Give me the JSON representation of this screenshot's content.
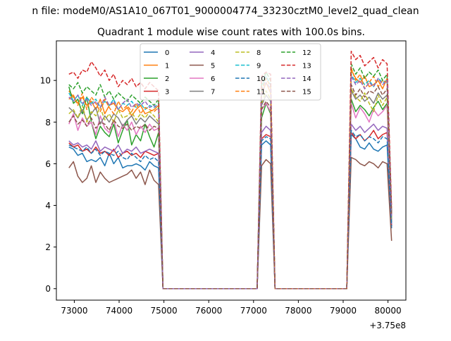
{
  "figure": {
    "suptitle": "n file: modeM0/AS1A10_067T01_9000004774_33230cztM0_level2_quad_clean"
  },
  "chart_data": {
    "type": "line",
    "title": "Quadrant 1 module wise count rates with 100.0s bins.",
    "xlabel": "",
    "ylabel": "",
    "x_offset_label": "+3.75e8",
    "xlim": [
      72600,
      80400
    ],
    "ylim": [
      -0.55,
      11.9
    ],
    "x_ticks": [
      73000,
      74000,
      75000,
      76000,
      77000,
      78000,
      79000,
      80000
    ],
    "x_tick_labels": [
      "73000",
      "74000",
      "75000",
      "76000",
      "77000",
      "78000",
      "79000",
      "80000"
    ],
    "y_ticks": [
      0,
      2,
      4,
      6,
      8,
      10
    ],
    "y_tick_labels": [
      "0",
      "2",
      "4",
      "6",
      "8",
      "10"
    ],
    "grid": false,
    "legend": {
      "placement": "upper-center",
      "columns": 4
    },
    "segment_x": {
      "seg1": [
        72880,
        72980,
        73080,
        73180,
        73280,
        73380,
        73480,
        73580,
        73680,
        73780,
        73880,
        73980,
        74080,
        74180,
        74280,
        74380,
        74480,
        74580,
        74680,
        74780,
        74880
      ],
      "gap1": [
        74980,
        75080,
        75180,
        75280,
        75380,
        75480,
        75580,
        75680,
        75780,
        75880,
        75980,
        76080,
        76180,
        76280,
        76380,
        76480,
        76580,
        76680,
        76780,
        76880,
        76980,
        77080
      ],
      "seg2": [
        77180,
        77280,
        77380
      ],
      "gap2": [
        77480,
        77580,
        77680,
        77780,
        77880,
        77980,
        78080,
        78180,
        78280,
        78380,
        78480,
        78580,
        78680,
        78780,
        78880,
        78980,
        79080
      ],
      "seg3": [
        79180,
        79280,
        79380,
        79480,
        79580,
        79680,
        79780,
        79880,
        79980
      ],
      "end": [
        80080
      ]
    },
    "series": [
      {
        "name": "0",
        "color": "#1f77b4",
        "dash": "solid",
        "seg1": [
          6.8,
          6.7,
          6.4,
          6.5,
          6.1,
          6.2,
          6.1,
          6.3,
          5.9,
          6.5,
          6.0,
          6.3,
          5.8,
          5.9,
          5.9,
          6.0,
          5.9,
          5.7,
          6.1,
          5.9,
          5.8
        ],
        "seg2": [
          6.9,
          7.1,
          6.9
        ],
        "seg3": [
          7.4,
          7.2,
          6.8,
          6.7,
          7.0,
          6.7,
          6.6,
          6.8,
          6.9
        ],
        "end": 2.9
      },
      {
        "name": "1",
        "color": "#ff7f0e",
        "dash": "solid",
        "seg1": [
          9.5,
          9.2,
          8.9,
          9.2,
          8.8,
          9.0,
          8.6,
          9.1,
          8.4,
          8.8,
          8.9,
          8.6,
          8.5,
          8.7,
          8.3,
          8.6,
          8.8,
          8.4,
          8.5,
          8.6,
          8.8
        ],
        "seg2": [
          9.3,
          9.9,
          9.4
        ],
        "seg3": [
          10.5,
          10.1,
          9.9,
          10.2,
          9.7,
          9.8,
          10.0,
          9.6,
          10.1
        ],
        "end": 3.4
      },
      {
        "name": "2",
        "color": "#2ca02c",
        "dash": "solid",
        "seg1": [
          9.7,
          8.9,
          9.1,
          8.4,
          9.2,
          8.0,
          7.2,
          7.8,
          7.5,
          7.3,
          7.9,
          7.0,
          7.6,
          8.1,
          6.9,
          7.4,
          7.1,
          7.9,
          7.3,
          6.8,
          7.5
        ],
        "seg2": [
          8.2,
          8.9,
          8.4
        ],
        "seg3": [
          9.1,
          8.5,
          8.8,
          8.6,
          8.3,
          8.7,
          9.0,
          8.6,
          8.9
        ],
        "end": 3.2
      },
      {
        "name": "3",
        "color": "#d62728",
        "dash": "solid",
        "seg1": [
          7.0,
          6.8,
          6.9,
          6.6,
          6.7,
          6.5,
          6.8,
          6.5,
          6.6,
          6.4,
          6.7,
          6.3,
          6.5,
          6.6,
          6.4,
          6.5,
          6.3,
          6.6,
          6.5,
          6.4,
          6.5
        ],
        "seg2": [
          7.2,
          7.4,
          7.3
        ],
        "seg3": [
          7.5,
          7.2,
          7.4,
          7.1,
          7.3,
          7.6,
          7.2,
          7.4,
          7.5
        ],
        "end": 3.0
      },
      {
        "name": "4",
        "color": "#9467bd",
        "dash": "solid",
        "seg1": [
          7.1,
          6.9,
          7.0,
          6.8,
          6.9,
          6.7,
          7.1,
          6.6,
          6.8,
          6.7,
          6.6,
          6.9,
          6.5,
          6.7,
          6.6,
          6.8,
          6.5,
          6.6,
          6.7,
          6.6,
          6.5
        ],
        "seg2": [
          7.5,
          7.8,
          7.6
        ],
        "seg3": [
          7.9,
          7.6,
          7.8,
          7.5,
          7.7,
          7.9,
          7.6,
          7.8,
          7.7
        ],
        "end": 3.1
      },
      {
        "name": "5",
        "color": "#8c564b",
        "dash": "solid",
        "seg1": [
          5.8,
          6.1,
          5.4,
          5.1,
          5.3,
          5.9,
          5.1,
          5.6,
          5.3,
          5.1,
          5.2,
          5.3,
          5.4,
          5.5,
          5.7,
          5.3,
          5.6,
          5.0,
          5.7,
          5.2,
          5.0
        ],
        "seg2": [
          5.9,
          6.2,
          6.0
        ],
        "seg3": [
          6.3,
          6.2,
          6.0,
          5.9,
          6.1,
          6.0,
          5.8,
          6.1,
          6.0
        ],
        "end": 2.3
      },
      {
        "name": "6",
        "color": "#e377c2",
        "dash": "solid",
        "seg1": [
          7.9,
          8.4,
          7.6,
          8.2,
          7.8,
          8.0,
          7.4,
          8.3,
          7.7,
          7.5,
          8.1,
          7.3,
          7.9,
          7.6,
          8.0,
          7.4,
          7.8,
          7.5,
          7.9,
          7.6,
          7.7
        ],
        "seg2": [
          8.6,
          8.9,
          8.5
        ],
        "seg3": [
          8.9,
          8.2,
          8.7,
          8.4,
          8.0,
          8.6,
          8.3,
          8.5,
          8.8
        ],
        "end": 3.3
      },
      {
        "name": "7",
        "color": "#7f7f7f",
        "dash": "solid",
        "seg1": [
          8.7,
          8.5,
          8.2,
          8.6,
          8.1,
          8.4,
          8.7,
          7.9,
          8.3,
          8.0,
          8.4,
          8.2,
          7.8,
          8.1,
          8.3,
          7.9,
          8.2,
          8.0,
          8.3,
          8.1,
          7.9
        ],
        "seg2": [
          8.8,
          9.3,
          9.0
        ],
        "seg3": [
          9.5,
          9.1,
          9.3,
          9.0,
          9.2,
          8.9,
          9.4,
          9.1,
          9.3
        ],
        "end": 3.3
      },
      {
        "name": "8",
        "color": "#bcbd22",
        "dash": "dashed",
        "seg1": [
          8.4,
          8.6,
          8.2,
          8.8,
          8.0,
          8.5,
          8.3,
          8.7,
          8.1,
          8.4,
          8.0,
          8.6,
          8.2,
          8.3,
          8.5,
          8.1,
          8.4,
          8.2,
          8.5,
          8.3,
          8.0
        ],
        "seg2": [
          8.9,
          9.5,
          9.1
        ],
        "seg3": [
          9.6,
          9.2,
          9.0,
          9.4,
          8.9,
          8.5,
          9.3,
          8.8,
          9.2
        ],
        "end": 3.4
      },
      {
        "name": "9",
        "color": "#17becf",
        "dash": "dashed",
        "seg1": [
          9.4,
          9.0,
          9.3,
          8.8,
          9.2,
          8.9,
          9.1,
          8.7,
          9.0,
          8.8,
          9.1,
          8.6,
          8.9,
          8.8,
          9.0,
          8.7,
          8.9,
          8.6,
          8.8,
          8.7,
          8.9
        ],
        "seg2": [
          9.6,
          10.2,
          9.8
        ],
        "seg3": [
          10.3,
          9.9,
          10.1,
          9.8,
          10.0,
          9.7,
          10.1,
          9.9,
          10.0
        ],
        "end": 3.5
      },
      {
        "name": "10",
        "color": "#1f77b4",
        "dash": "dashed",
        "seg1": [
          6.9,
          6.8,
          6.7,
          6.6,
          6.8,
          6.5,
          6.7,
          6.4,
          6.6,
          6.5,
          6.4,
          6.6,
          6.3,
          6.2,
          6.5,
          6.3,
          6.1,
          6.4,
          6.2,
          6.3,
          6.1
        ],
        "seg2": [
          7.1,
          7.3,
          7.2
        ],
        "seg3": [
          7.6,
          7.3,
          7.4,
          7.1,
          7.3,
          7.2,
          7.0,
          7.3,
          7.2
        ],
        "end": 3.0
      },
      {
        "name": "11",
        "color": "#ff7f0e",
        "dash": "dashed",
        "seg1": [
          9.1,
          9.3,
          8.8,
          9.4,
          8.6,
          9.2,
          8.9,
          8.5,
          9.1,
          8.7,
          8.4,
          9.0,
          8.6,
          8.8,
          8.5,
          8.9,
          8.4,
          8.7,
          8.6,
          8.5,
          8.7
        ],
        "seg2": [
          9.5,
          10.1,
          9.7
        ],
        "seg3": [
          10.6,
          10.0,
          10.3,
          9.6,
          9.9,
          10.2,
          9.7,
          10.0,
          9.9
        ],
        "end": 3.6
      },
      {
        "name": "12",
        "color": "#2ca02c",
        "dash": "dashed",
        "seg1": [
          9.8,
          9.6,
          9.9,
          9.4,
          9.7,
          9.5,
          9.3,
          9.8,
          9.2,
          9.5,
          9.1,
          9.4,
          9.2,
          9.0,
          9.3,
          9.1,
          8.9,
          9.2,
          9.0,
          8.8,
          9.1
        ],
        "seg2": [
          9.8,
          10.4,
          10.0
        ],
        "seg3": [
          10.8,
          10.3,
          10.6,
          10.1,
          10.4,
          10.2,
          10.5,
          10.0,
          10.3
        ],
        "end": 3.7
      },
      {
        "name": "13",
        "color": "#d62728",
        "dash": "dashed",
        "seg1": [
          10.3,
          10.4,
          10.1,
          10.5,
          10.4,
          10.9,
          10.6,
          10.2,
          10.5,
          10.0,
          10.3,
          9.7,
          10.0,
          9.8,
          10.1,
          9.7,
          9.9,
          9.6,
          9.9,
          9.7,
          9.5
        ],
        "seg2": [
          10.2,
          10.4,
          10.3
        ],
        "seg3": [
          11.4,
          11.0,
          11.2,
          10.7,
          10.9,
          11.1,
          10.6,
          11.0,
          10.8
        ],
        "end": 3.9
      },
      {
        "name": "14",
        "color": "#9467bd",
        "dash": "dashed",
        "seg1": [
          9.2,
          9.0,
          9.3,
          8.9,
          9.1,
          8.8,
          9.0,
          8.7,
          9.2,
          8.8,
          9.0,
          8.6,
          8.9,
          9.1,
          8.7,
          8.9,
          8.8,
          9.0,
          8.7,
          8.8,
          8.6
        ],
        "seg2": [
          9.4,
          9.9,
          9.6
        ],
        "seg3": [
          10.2,
          9.8,
          10.0,
          9.6,
          9.9,
          9.7,
          10.1,
          9.8,
          10.0
        ],
        "end": 3.5
      },
      {
        "name": "15",
        "color": "#8c564b",
        "dash": "dashed",
        "seg1": [
          8.0,
          8.3,
          7.9,
          8.1,
          7.8,
          8.2,
          7.7,
          8.0,
          7.9,
          7.6,
          8.1,
          7.8,
          7.7,
          7.9,
          7.6,
          7.8,
          7.7,
          7.9,
          7.6,
          7.8,
          7.7
        ],
        "seg2": [
          8.6,
          9.0,
          8.7
        ],
        "seg3": [
          9.8,
          9.3,
          9.6,
          9.2,
          9.5,
          9.4,
          9.7,
          9.3,
          9.6
        ],
        "end": 3.6
      }
    ]
  }
}
